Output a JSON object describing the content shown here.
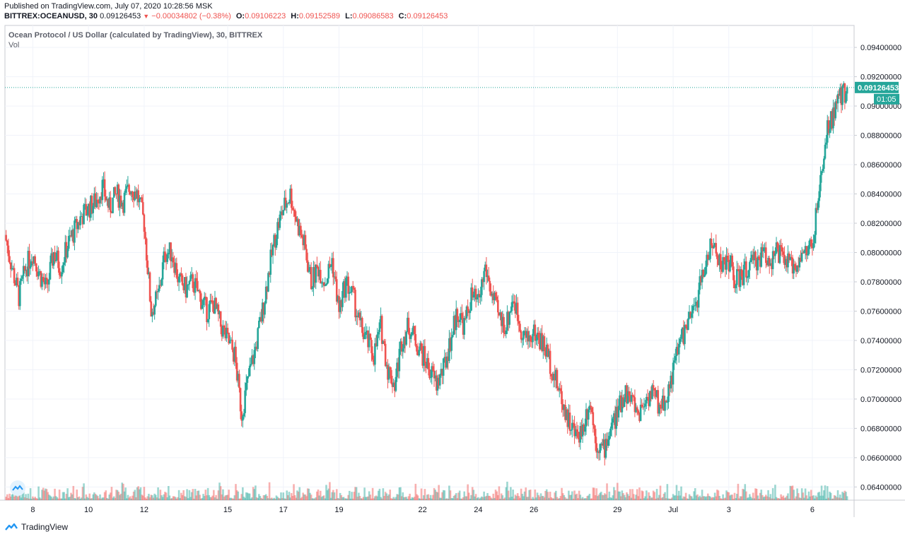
{
  "header": {
    "published": "Published on TradingView.com, July 07, 2020 10:28:56 MSK",
    "symbol": "BITTREX:OCEANUSD, 30",
    "last": "0.09126453",
    "change": "−0.00034802 (−0.38%)",
    "o_label": "O:",
    "o": "0.09106223",
    "h_label": "H:",
    "h": "0.09152589",
    "l_label": "L:",
    "l": "0.09086583",
    "c_label": "C:",
    "c": "0.09126453"
  },
  "legend": {
    "title": "Ocean Protocol / US Dollar (calculated by TradingView), 30, BITTREX",
    "vol": "Vol"
  },
  "price_tag": {
    "price": "0.09126453",
    "countdown": "01:05"
  },
  "footer": {
    "brand": "TradingView"
  },
  "colors": {
    "up": "#26a69a",
    "down": "#ef5350",
    "grid": "#f0f3fa",
    "last_line": "#26a69a"
  },
  "chart_data": {
    "type": "line",
    "title": "Ocean Protocol / US Dollar (calculated by TradingView), 30, BITTREX",
    "yticks": [
      0.064,
      0.066,
      0.068,
      0.07,
      0.072,
      0.074,
      0.076,
      0.078,
      0.08,
      0.082,
      0.084,
      0.086,
      0.088,
      0.09,
      0.092,
      0.094
    ],
    "ytick_labels": [
      "0.06400000",
      "0.06600000",
      "0.06800000",
      "0.07000000",
      "0.07200000",
      "0.07400000",
      "0.07600000",
      "0.07800000",
      "0.08000000",
      "0.08200000",
      "0.08400000",
      "0.08600000",
      "0.08800000",
      "0.09000000",
      "0.09200000",
      "0.09400000"
    ],
    "ylim": [
      0.0631,
      0.0955
    ],
    "xlim": [
      "2020-06-07",
      "2020-07-07"
    ],
    "xticks": [
      {
        "label": "8",
        "x": "2020-06-08"
      },
      {
        "label": "10",
        "x": "2020-06-10"
      },
      {
        "label": "12",
        "x": "2020-06-12"
      },
      {
        "label": "15",
        "x": "2020-06-15"
      },
      {
        "label": "17",
        "x": "2020-06-17"
      },
      {
        "label": "19",
        "x": "2020-06-19"
      },
      {
        "label": "22",
        "x": "2020-06-22"
      },
      {
        "label": "24",
        "x": "2020-06-24"
      },
      {
        "label": "26",
        "x": "2020-06-26"
      },
      {
        "label": "29",
        "x": "2020-06-29"
      },
      {
        "label": "Jul",
        "x": "2020-07-01"
      },
      {
        "label": "3",
        "x": "2020-07-03"
      },
      {
        "label": "6",
        "x": "2020-07-06"
      }
    ],
    "last_price": 0.09126453,
    "series": [
      {
        "values": [
          [
            "2020-06-07T00:00",
            0.0812
          ],
          [
            "2020-06-07T06:00",
            0.079
          ],
          [
            "2020-06-07T12:00",
            0.077
          ],
          [
            "2020-06-07T18:00",
            0.079
          ],
          [
            "2020-06-08T00:00",
            0.08
          ],
          [
            "2020-06-08T06:00",
            0.0785
          ],
          [
            "2020-06-08T12:00",
            0.0775
          ],
          [
            "2020-06-08T18:00",
            0.08
          ],
          [
            "2020-06-09T00:00",
            0.079
          ],
          [
            "2020-06-09T06:00",
            0.0805
          ],
          [
            "2020-06-09T12:00",
            0.0815
          ],
          [
            "2020-06-09T18:00",
            0.0825
          ],
          [
            "2020-06-10T00:00",
            0.083
          ],
          [
            "2020-06-10T06:00",
            0.0835
          ],
          [
            "2020-06-10T12:00",
            0.0845
          ],
          [
            "2020-06-10T18:00",
            0.083
          ],
          [
            "2020-06-11T00:00",
            0.084
          ],
          [
            "2020-06-11T06:00",
            0.0835
          ],
          [
            "2020-06-11T12:00",
            0.0845
          ],
          [
            "2020-06-11T18:00",
            0.084
          ],
          [
            "2020-06-12T00:00",
            0.082
          ],
          [
            "2020-06-12T06:00",
            0.076
          ],
          [
            "2020-06-12T12:00",
            0.077
          ],
          [
            "2020-06-12T18:00",
            0.08
          ],
          [
            "2020-06-13T00:00",
            0.08
          ],
          [
            "2020-06-13T06:00",
            0.078
          ],
          [
            "2020-06-13T12:00",
            0.0775
          ],
          [
            "2020-06-13T18:00",
            0.078
          ],
          [
            "2020-06-14T00:00",
            0.077
          ],
          [
            "2020-06-14T06:00",
            0.076
          ],
          [
            "2020-06-14T12:00",
            0.0765
          ],
          [
            "2020-06-14T18:00",
            0.075
          ],
          [
            "2020-06-15T00:00",
            0.074
          ],
          [
            "2020-06-15T06:00",
            0.073
          ],
          [
            "2020-06-15T12:00",
            0.069
          ],
          [
            "2020-06-15T18:00",
            0.0715
          ],
          [
            "2020-06-16T00:00",
            0.0735
          ],
          [
            "2020-06-16T06:00",
            0.076
          ],
          [
            "2020-06-16T12:00",
            0.079
          ],
          [
            "2020-06-16T18:00",
            0.0815
          ],
          [
            "2020-06-17T00:00",
            0.083
          ],
          [
            "2020-06-17T06:00",
            0.084
          ],
          [
            "2020-06-17T12:00",
            0.082
          ],
          [
            "2020-06-17T18:00",
            0.0805
          ],
          [
            "2020-06-18T00:00",
            0.078
          ],
          [
            "2020-06-18T06:00",
            0.079
          ],
          [
            "2020-06-18T12:00",
            0.078
          ],
          [
            "2020-06-18T18:00",
            0.0795
          ],
          [
            "2020-06-19T00:00",
            0.076
          ],
          [
            "2020-06-19T06:00",
            0.078
          ],
          [
            "2020-06-19T12:00",
            0.077
          ],
          [
            "2020-06-19T18:00",
            0.075
          ],
          [
            "2020-06-20T00:00",
            0.074
          ],
          [
            "2020-06-20T06:00",
            0.073
          ],
          [
            "2020-06-20T12:00",
            0.075
          ],
          [
            "2020-06-20T18:00",
            0.072
          ],
          [
            "2020-06-21T00:00",
            0.071
          ],
          [
            "2020-06-21T06:00",
            0.074
          ],
          [
            "2020-06-21T12:00",
            0.075
          ],
          [
            "2020-06-21T18:00",
            0.074
          ],
          [
            "2020-06-22T00:00",
            0.073
          ],
          [
            "2020-06-22T06:00",
            0.072
          ],
          [
            "2020-06-22T12:00",
            0.071
          ],
          [
            "2020-06-22T18:00",
            0.072
          ],
          [
            "2020-06-23T00:00",
            0.074
          ],
          [
            "2020-06-23T06:00",
            0.076
          ],
          [
            "2020-06-23T12:00",
            0.075
          ],
          [
            "2020-06-23T18:00",
            0.077
          ],
          [
            "2020-06-24T00:00",
            0.0765
          ],
          [
            "2020-06-24T06:00",
            0.079
          ],
          [
            "2020-06-24T12:00",
            0.077
          ],
          [
            "2020-06-24T18:00",
            0.0755
          ],
          [
            "2020-06-25T00:00",
            0.075
          ],
          [
            "2020-06-25T06:00",
            0.077
          ],
          [
            "2020-06-25T12:00",
            0.075
          ],
          [
            "2020-06-25T18:00",
            0.074
          ],
          [
            "2020-06-26T00:00",
            0.0745
          ],
          [
            "2020-06-26T06:00",
            0.074
          ],
          [
            "2020-06-26T12:00",
            0.073
          ],
          [
            "2020-06-26T18:00",
            0.0715
          ],
          [
            "2020-06-27T00:00",
            0.07
          ],
          [
            "2020-06-27T06:00",
            0.0685
          ],
          [
            "2020-06-27T12:00",
            0.0675
          ],
          [
            "2020-06-27T18:00",
            0.068
          ],
          [
            "2020-06-28T00:00",
            0.07
          ],
          [
            "2020-06-28T06:00",
            0.067
          ],
          [
            "2020-06-28T12:00",
            0.0665
          ],
          [
            "2020-06-28T18:00",
            0.068
          ],
          [
            "2020-06-29T00:00",
            0.069
          ],
          [
            "2020-06-29T06:00",
            0.0705
          ],
          [
            "2020-06-29T12:00",
            0.07
          ],
          [
            "2020-06-29T18:00",
            0.069
          ],
          [
            "2020-06-30T00:00",
            0.07
          ],
          [
            "2020-06-30T06:00",
            0.0705
          ],
          [
            "2020-06-30T12:00",
            0.0695
          ],
          [
            "2020-06-30T18:00",
            0.07
          ],
          [
            "2020-07-01T00:00",
            0.072
          ],
          [
            "2020-07-01T06:00",
            0.074
          ],
          [
            "2020-07-01T12:00",
            0.075
          ],
          [
            "2020-07-01T18:00",
            0.076
          ],
          [
            "2020-07-02T00:00",
            0.078
          ],
          [
            "2020-07-02T06:00",
            0.08
          ],
          [
            "2020-07-02T12:00",
            0.0805
          ],
          [
            "2020-07-02T18:00",
            0.079
          ],
          [
            "2020-07-03T00:00",
            0.0795
          ],
          [
            "2020-07-03T06:00",
            0.078
          ],
          [
            "2020-07-03T12:00",
            0.0785
          ],
          [
            "2020-07-03T18:00",
            0.079
          ],
          [
            "2020-07-04T00:00",
            0.0795
          ],
          [
            "2020-07-04T06:00",
            0.08
          ],
          [
            "2020-07-04T12:00",
            0.0795
          ],
          [
            "2020-07-04T18:00",
            0.08
          ],
          [
            "2020-07-05T00:00",
            0.0795
          ],
          [
            "2020-07-05T06:00",
            0.079
          ],
          [
            "2020-07-05T12:00",
            0.0795
          ],
          [
            "2020-07-05T18:00",
            0.08
          ],
          [
            "2020-07-06T00:00",
            0.0805
          ],
          [
            "2020-07-06T06:00",
            0.084
          ],
          [
            "2020-07-06T12:00",
            0.088
          ],
          [
            "2020-07-06T18:00",
            0.0895
          ],
          [
            "2020-07-07T00:00",
            0.0905
          ],
          [
            "2020-07-07T06:00",
            0.09126453
          ]
        ]
      }
    ]
  }
}
